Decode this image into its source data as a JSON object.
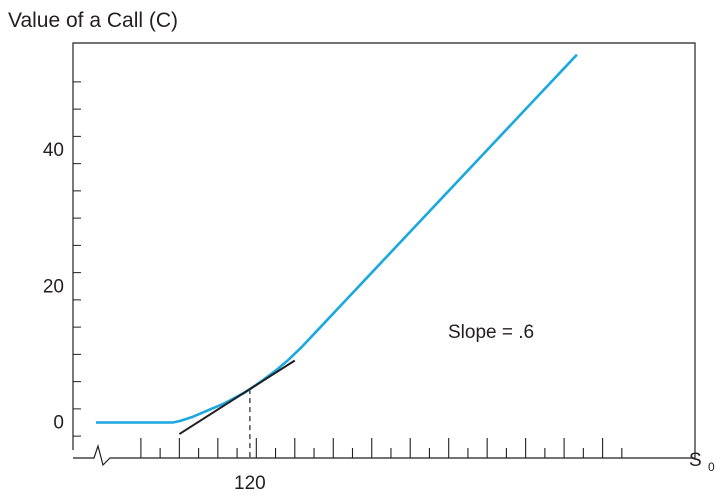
{
  "chart_data": {
    "type": "line",
    "title": "Value of a Call (C)",
    "xlabel": "S",
    "xlabel_subscript": "0",
    "ylabel": "",
    "ylim": [
      -4.5,
      55
    ],
    "yticks": [
      {
        "value": 0,
        "label": "0"
      },
      {
        "value": 20,
        "label": "20"
      },
      {
        "value": 40,
        "label": "40"
      }
    ],
    "xticks": [
      {
        "value": 120,
        "label": "120"
      }
    ],
    "axis_break": "left",
    "series": [
      {
        "name": "",
        "color": "#1ba7df",
        "points": [
          [
            96,
            0
          ],
          [
            104,
            0
          ],
          [
            108,
            0
          ],
          [
            109,
            0.2
          ],
          [
            110,
            0.5
          ],
          [
            111,
            0.8
          ],
          [
            112,
            1.2
          ],
          [
            113,
            1.6
          ],
          [
            114,
            2.0
          ],
          [
            115,
            2.4
          ],
          [
            116,
            2.8
          ],
          [
            117,
            3.3
          ],
          [
            118,
            3.8
          ],
          [
            119,
            4.3
          ],
          [
            120,
            4.9
          ],
          [
            122,
            6.2
          ],
          [
            124,
            7.6
          ],
          [
            126,
            9.2
          ],
          [
            128,
            11.0
          ],
          [
            130,
            13.0
          ],
          [
            132,
            15.0
          ],
          [
            135,
            18.0
          ],
          [
            140,
            23.0
          ],
          [
            145,
            28.0
          ],
          [
            150,
            33.0
          ],
          [
            155,
            38.0
          ],
          [
            160,
            43.0
          ],
          [
            165,
            48.0
          ],
          [
            170,
            53.0
          ],
          [
            171,
            54.0
          ]
        ]
      }
    ],
    "tangent": {
      "color": "#231f20",
      "label": "Slope = .6",
      "x_from": 109,
      "x_to": 127,
      "point": [
        120,
        4.9
      ],
      "slope": 0.6
    },
    "reference_line": {
      "x": 120,
      "style": "dashed"
    }
  }
}
